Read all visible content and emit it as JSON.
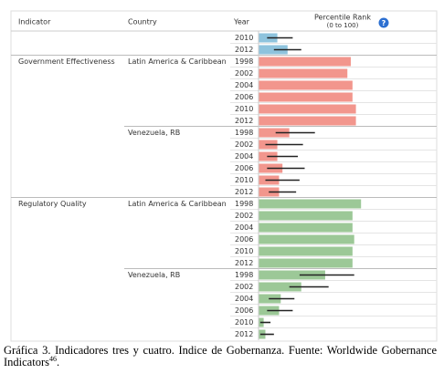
{
  "chart_data": {
    "type": "bar",
    "headers": {
      "indicator": "Indicator",
      "country": "Country",
      "year": "Year",
      "value": [
        "Percentile Rank",
        "(0 to 100)"
      ],
      "help_icon": "?"
    },
    "xlim": [
      0,
      100
    ],
    "groups": [
      {
        "color": "#8ec3dd",
        "years": [
          "2010",
          "2012"
        ],
        "values": [
          11,
          17
        ],
        "errors": [
          [
            5,
            20
          ],
          [
            9,
            25
          ]
        ]
      },
      {
        "indicator": "Government Effectiveness",
        "country": "Latin America & Caribbean",
        "color": "#f2968d",
        "years": [
          "1998",
          "2002",
          "2004",
          "2006",
          "2010",
          "2012"
        ],
        "values": [
          54,
          52,
          55,
          55,
          57,
          57
        ]
      },
      {
        "country": "Venezuela, RB",
        "color": "#f2968d",
        "years": [
          "1998",
          "2002",
          "2004",
          "2006",
          "2010",
          "2012"
        ],
        "values": [
          18,
          11,
          11,
          14,
          12,
          12
        ],
        "errors": [
          [
            10,
            33
          ],
          [
            4,
            26
          ],
          [
            5,
            23
          ],
          [
            5,
            27
          ],
          [
            4,
            24
          ],
          [
            6,
            22
          ]
        ]
      },
      {
        "indicator": "Regulatory Quality",
        "country": "Latin America & Caribbean",
        "color": "#9cc897",
        "years": [
          "1998",
          "2002",
          "2004",
          "2006",
          "2010",
          "2012"
        ],
        "values": [
          60,
          55,
          55,
          56,
          55,
          55
        ]
      },
      {
        "country": "Venezuela, RB",
        "color": "#9cc897",
        "years": [
          "1998",
          "2002",
          "2004",
          "2006",
          "2010",
          "2012"
        ],
        "values": [
          39,
          25,
          13,
          12,
          3,
          4
        ],
        "errors": [
          [
            24,
            56
          ],
          [
            18,
            41
          ],
          [
            6,
            21
          ],
          [
            5,
            20
          ],
          [
            1,
            7
          ],
          [
            1,
            9
          ]
        ]
      }
    ]
  },
  "caption": {
    "text": "Gráfica 3. Indicadores tres y cuatro. Indice de Gobernanza. Fuente: Worldwide Gobernance Indicators",
    "superscript": "46",
    "end": "."
  }
}
